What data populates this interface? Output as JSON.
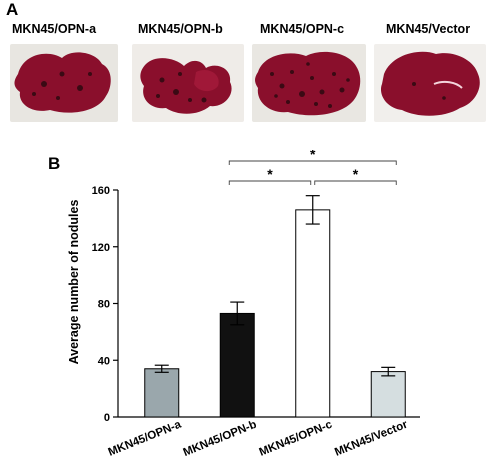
{
  "panel_a": {
    "letter": "A",
    "labels": [
      "MKN45/OPN-a",
      "MKN45/OPN-b",
      "MKN45/OPN-c",
      "MKN45/Vector"
    ]
  },
  "panel_b": {
    "letter": "B"
  },
  "colors": {
    "liver": "#8a0f2c",
    "liver_dark": "#5a0418",
    "bar_opn_a": "#9aa7ac",
    "bar_opn_b": "#111111",
    "bar_opn_c": "#ffffff",
    "bar_vector": "#d5dee0"
  },
  "chart_data": {
    "type": "bar",
    "categories": [
      "MKN45/OPN-a",
      "MKN45/OPN-b",
      "MKN45/OPN-c",
      "MKN45/Vector"
    ],
    "values": [
      34,
      73,
      146,
      32
    ],
    "errors": [
      2.5,
      8,
      10,
      3
    ],
    "ylabel": "Average  number  of  nodules",
    "xlabel": "",
    "title": "",
    "ylim": [
      0,
      160
    ],
    "yticks": [
      0,
      40,
      80,
      120,
      160
    ],
    "grid": false,
    "significance": [
      {
        "from": 1,
        "to": 2,
        "label": "*"
      },
      {
        "from": 2,
        "to": 3,
        "label": "*"
      },
      {
        "from": 1,
        "to": 3,
        "label": "*"
      }
    ]
  }
}
